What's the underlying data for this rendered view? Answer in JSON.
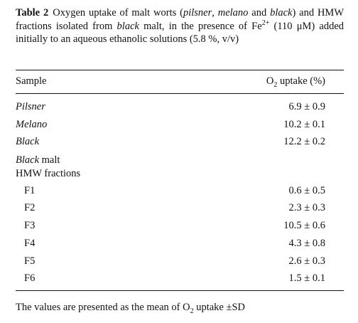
{
  "caption": {
    "label": "Table 2",
    "text": [
      "Oxygen uptake of malt worts (",
      "pilsner",
      ", ",
      "melano",
      " and ",
      "black",
      ") and HMW fractions isolated from ",
      "black",
      " malt, in the presence of Fe",
      "2+",
      " (110 μM) added initially to an aqueous ethanolic solutions (5.8 %, v/v)"
    ]
  },
  "table": {
    "header": [
      "Sample",
      [
        "O",
        "2",
        " uptake (%)"
      ]
    ],
    "rows": [
      [
        "Pilsner",
        "6.9 ± 0.9"
      ],
      [
        "Melano",
        "10.2 ± 0.1"
      ],
      [
        "Black",
        "12.2 ± 0.2"
      ],
      [
        [
          "Black",
          " malt",
          "HMW fractions"
        ]
      ],
      [
        "F1",
        "0.6 ± 0.5"
      ],
      [
        "F2",
        "2.3 ± 0.3"
      ],
      [
        "F3",
        "10.5 ± 0.6"
      ],
      [
        "F4",
        "4.3 ± 0.8"
      ],
      [
        "F5",
        "2.6 ± 0.3"
      ],
      [
        "F6",
        "1.5 ± 0.1"
      ]
    ]
  },
  "footnote": [
    "The values are presented as the mean of O",
    "2",
    " uptake ±SD"
  ]
}
